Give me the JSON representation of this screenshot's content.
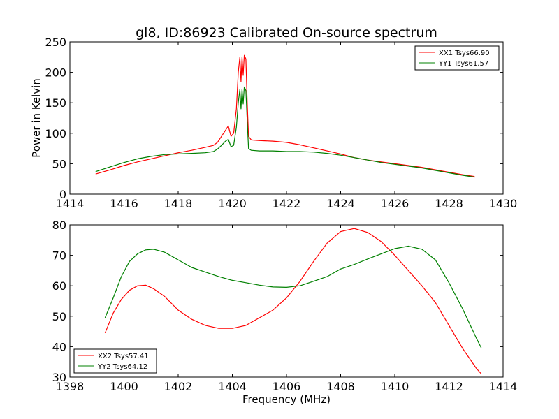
{
  "chart_data": [
    {
      "type": "line",
      "title": "gl8, ID:86923 Calibrated On-source spectrum",
      "xlabel": "",
      "ylabel": "Power in Kelvin",
      "xlim": [
        1414,
        1430
      ],
      "ylim": [
        0,
        250
      ],
      "xticks": [
        "1414",
        "1416",
        "1418",
        "1420",
        "1422",
        "1424",
        "1426",
        "1428",
        "1430"
      ],
      "yticks": [
        "0",
        "50",
        "100",
        "150",
        "200",
        "250"
      ],
      "grid": false,
      "legend": "top-right",
      "series": [
        {
          "name": "XX1 Tsys66.90",
          "color": "#ff0000",
          "x": [
            1414.95,
            1415.5,
            1416,
            1416.5,
            1417,
            1417.5,
            1418,
            1418.5,
            1419,
            1419.3,
            1419.45,
            1419.6,
            1419.75,
            1419.85,
            1419.95,
            1420.05,
            1420.15,
            1420.22,
            1420.28,
            1420.32,
            1420.36,
            1420.4,
            1420.44,
            1420.5,
            1420.55,
            1420.6,
            1420.7,
            1421,
            1421.5,
            1422,
            1422.5,
            1423,
            1423.5,
            1424,
            1424.5,
            1425,
            1425.5,
            1426,
            1426.5,
            1427,
            1427.5,
            1428,
            1428.5,
            1428.95
          ],
          "y": [
            33,
            40,
            47,
            53,
            58,
            63,
            68,
            72,
            77,
            80,
            85,
            95,
            105,
            112,
            95,
            100,
            140,
            200,
            225,
            185,
            225,
            195,
            228,
            222,
            150,
            95,
            89,
            88,
            87,
            85,
            81,
            76,
            71,
            66,
            60,
            56,
            53,
            50,
            47,
            44,
            40,
            36,
            32,
            29
          ]
        },
        {
          "name": "YY1 Tsys61.57",
          "color": "#008000",
          "x": [
            1414.95,
            1415.5,
            1416,
            1416.5,
            1417,
            1417.5,
            1418,
            1418.5,
            1419,
            1419.3,
            1419.45,
            1419.6,
            1419.75,
            1419.85,
            1419.95,
            1420.05,
            1420.15,
            1420.22,
            1420.28,
            1420.32,
            1420.36,
            1420.4,
            1420.44,
            1420.5,
            1420.55,
            1420.6,
            1420.7,
            1421,
            1421.5,
            1422,
            1422.5,
            1423,
            1423.5,
            1424,
            1424.5,
            1425,
            1425.5,
            1426,
            1426.5,
            1427,
            1427.5,
            1428,
            1428.5,
            1428.95
          ],
          "y": [
            37,
            45,
            52,
            58,
            62,
            65,
            66,
            67,
            68,
            70,
            74,
            80,
            87,
            90,
            78,
            80,
            110,
            150,
            172,
            140,
            172,
            148,
            176,
            170,
            120,
            75,
            72,
            71,
            71,
            70,
            70,
            69,
            67,
            64,
            60,
            56,
            52,
            49,
            46,
            43,
            39,
            35,
            31,
            28
          ]
        }
      ]
    },
    {
      "type": "line",
      "title": "",
      "xlabel": "Frequency (MHz)",
      "ylabel": "",
      "xlim": [
        1398,
        1414
      ],
      "ylim": [
        30,
        80
      ],
      "xticks": [
        "1398",
        "1400",
        "1402",
        "1404",
        "1406",
        "1408",
        "1410",
        "1412",
        "1414"
      ],
      "yticks": [
        "30",
        "40",
        "50",
        "60",
        "70",
        "80"
      ],
      "grid": false,
      "legend": "bottom-left",
      "series": [
        {
          "name": "XX2 Tsys57.41",
          "color": "#ff0000",
          "x": [
            1399.3,
            1399.6,
            1399.9,
            1400.2,
            1400.5,
            1400.8,
            1401.1,
            1401.5,
            1402,
            1402.5,
            1403,
            1403.5,
            1404,
            1404.5,
            1405,
            1405.5,
            1406,
            1406.5,
            1407,
            1407.5,
            1408,
            1408.5,
            1409,
            1409.5,
            1410,
            1410.5,
            1411,
            1411.5,
            1412,
            1412.5,
            1413,
            1413.2
          ],
          "y": [
            44.5,
            51,
            55.5,
            58.5,
            60,
            60.2,
            59,
            56.5,
            52,
            49,
            47,
            46,
            46,
            47,
            49.5,
            52,
            56,
            61.5,
            68,
            74,
            77.8,
            78.8,
            77.5,
            74.5,
            70,
            65,
            60,
            54.5,
            47,
            39.5,
            33,
            31
          ]
        },
        {
          "name": "YY2 Tsys64.12",
          "color": "#008000",
          "x": [
            1399.3,
            1399.6,
            1399.9,
            1400.2,
            1400.5,
            1400.8,
            1401.1,
            1401.5,
            1402,
            1402.5,
            1403,
            1403.5,
            1404,
            1404.5,
            1405,
            1405.5,
            1406,
            1406.5,
            1407,
            1407.5,
            1408,
            1408.5,
            1409,
            1409.5,
            1410,
            1410.5,
            1411,
            1411.5,
            1412,
            1412.5,
            1413,
            1413.2
          ],
          "y": [
            49.5,
            56,
            63,
            68,
            70.5,
            71.8,
            72,
            71,
            68.5,
            66,
            64.5,
            63,
            61.8,
            61,
            60.2,
            59.6,
            59.5,
            60,
            61.5,
            63,
            65.5,
            67,
            68.8,
            70.5,
            72.2,
            73,
            72,
            68.5,
            61,
            52.5,
            43,
            39.5
          ]
        }
      ]
    }
  ]
}
